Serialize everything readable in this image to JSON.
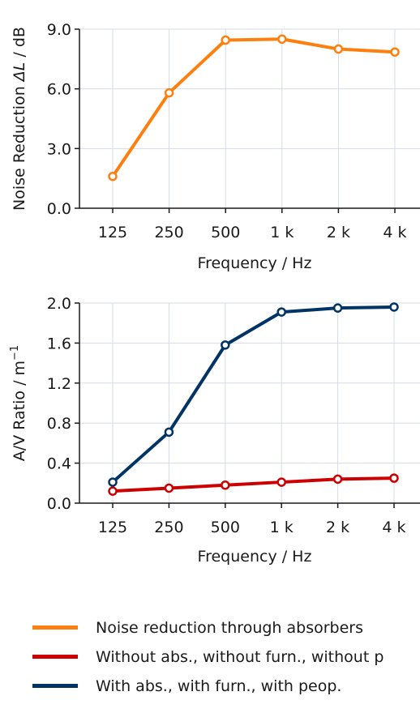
{
  "chart_data": [
    {
      "type": "line",
      "categories": [
        "125",
        "250",
        "500",
        "1 k",
        "2 k",
        "4 k"
      ],
      "series": [
        {
          "name": "Noise reduction through absorbers",
          "color": "#ff7f0e",
          "values": [
            1.6,
            5.8,
            8.45,
            8.5,
            8.0,
            7.85
          ]
        }
      ],
      "xlabel": "Frequency / Hz",
      "ylabel_parts": [
        "Noise Reduction ",
        "ΔL",
        " / dB"
      ],
      "ylim": [
        0,
        9
      ],
      "yticks": [
        "0.0",
        "3.0",
        "6.0",
        "9.0"
      ],
      "ytick_values": [
        0,
        3,
        6,
        9
      ],
      "grid": true
    },
    {
      "type": "line",
      "categories": [
        "125",
        "250",
        "500",
        "1 k",
        "2 k",
        "4 k"
      ],
      "series": [
        {
          "name": "Without abs., without furn., without p",
          "color": "#cc0000",
          "values": [
            0.12,
            0.15,
            0.18,
            0.21,
            0.24,
            0.25
          ]
        },
        {
          "name": "With abs., with furn., with peop.",
          "color": "#003366",
          "values": [
            0.21,
            0.71,
            1.58,
            1.91,
            1.95,
            1.96
          ]
        }
      ],
      "xlabel": "Frequency / Hz",
      "ylabel_parts": [
        "A/V Ratio /  m",
        "−1"
      ],
      "ylim": [
        0,
        2
      ],
      "yticks": [
        "0.0",
        "0.4",
        "0.8",
        "1.2",
        "1.6",
        "2.0"
      ],
      "ytick_values": [
        0,
        0.4,
        0.8,
        1.2,
        1.6,
        2.0
      ],
      "grid": true
    }
  ],
  "legend": {
    "placement": "bottom",
    "items": [
      {
        "label": "Noise reduction through absorbers",
        "color": "#ff7f0e"
      },
      {
        "label": "Without abs., without furn., without p",
        "color": "#cc0000"
      },
      {
        "label": "With abs., with furn., with peop.",
        "color": "#003366"
      }
    ]
  }
}
